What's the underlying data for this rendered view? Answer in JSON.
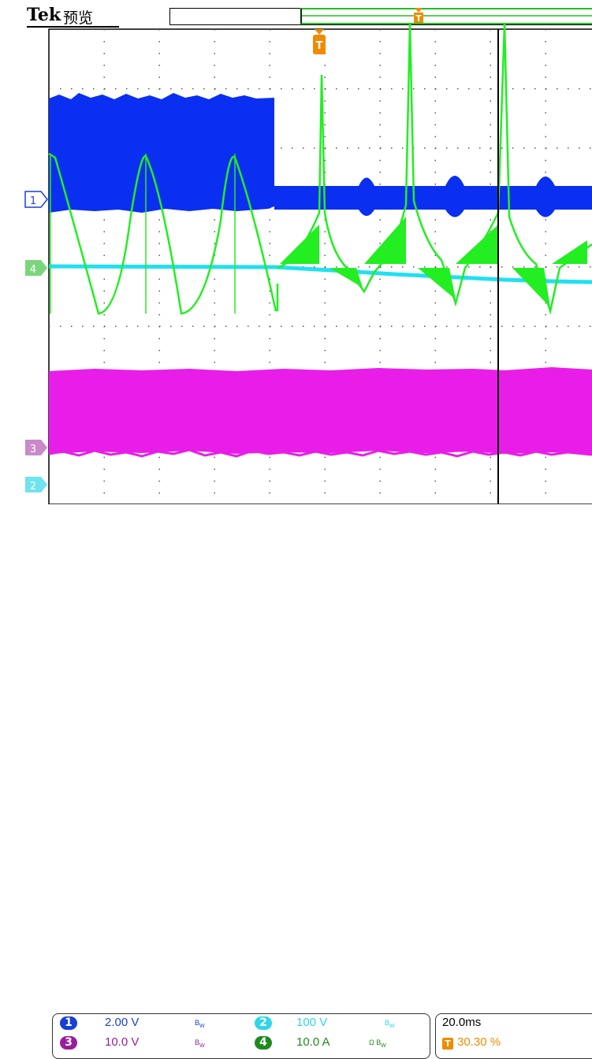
{
  "header": {
    "brand": "Tek",
    "mode": "预览"
  },
  "trigger": {
    "marker_label": "T",
    "record_marker_label": "T"
  },
  "markers": {
    "ch1": "1",
    "ch4": "4",
    "ch3": "3",
    "ch2": "2"
  },
  "channels": [
    {
      "num": "1",
      "scale": "2.00 V",
      "bw": "B",
      "bw_sub": "W",
      "color": "#1a3fd6"
    },
    {
      "num": "2",
      "scale": "100 V",
      "bw": "B",
      "bw_sub": "W",
      "color": "#2fd6e8"
    },
    {
      "num": "3",
      "scale": "10.0 V",
      "bw": "B",
      "bw_sub": "W",
      "color": "#9b1d9b"
    },
    {
      "num": "4",
      "scale": "10.0 A",
      "bw": "Ω B",
      "bw_sub": "W",
      "color": "#1e8a1e"
    }
  ],
  "timebase": {
    "value": "20.0ms",
    "trigger_label": "T",
    "trigger_position": "30.30 %"
  },
  "colors": {
    "ch1": "#0a2ff0",
    "ch2": "#20e0f0",
    "ch3": "#e020e0",
    "ch4": "#22ee22",
    "trigger": "#f08a00"
  }
}
